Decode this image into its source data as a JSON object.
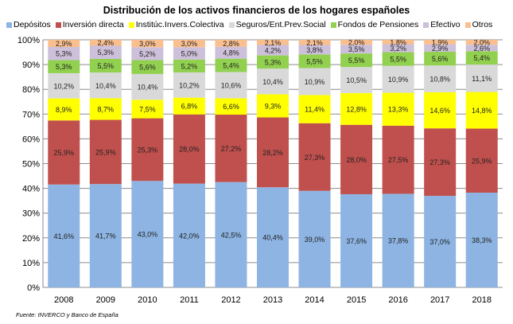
{
  "chart_data": {
    "type": "bar",
    "stacked": true,
    "title": "Distribución de los activos financieros de los hogares españoles",
    "categories": [
      "2008",
      "2009",
      "2010",
      "2011",
      "2012",
      "2013",
      "2014",
      "2015",
      "2016",
      "2017",
      "2018"
    ],
    "ylim": [
      0,
      100
    ],
    "yticks": [
      "0%",
      "10%",
      "20%",
      "30%",
      "40%",
      "50%",
      "60%",
      "70%",
      "80%",
      "90%",
      "100%"
    ],
    "grid": true,
    "legend": "top",
    "series": [
      {
        "name": "Depósitos",
        "color": "#8DB4E2",
        "values": [
          41.6,
          41.7,
          43.0,
          42.0,
          42.5,
          40.4,
          39.0,
          37.6,
          37.8,
          37.0,
          38.3
        ]
      },
      {
        "name": "Inversión directa",
        "color": "#C0504D",
        "values": [
          25.9,
          25.9,
          25.3,
          28.0,
          27.2,
          28.2,
          27.3,
          28.0,
          27.5,
          27.3,
          25.9
        ]
      },
      {
        "name": "Institúc.Invers.Colectiva",
        "color": "#FFFF00",
        "values": [
          8.9,
          8.7,
          7.5,
          6.8,
          6.6,
          9.3,
          11.4,
          12.8,
          13.3,
          14.6,
          14.8
        ]
      },
      {
        "name": "Seguros/Ent.Prev.Social",
        "color": "#D9D9D9",
        "values": [
          10.2,
          10.4,
          10.4,
          10.2,
          10.6,
          10.4,
          10.9,
          10.5,
          10.9,
          10.8,
          11.1
        ]
      },
      {
        "name": "Fondos de Pensiones",
        "color": "#92D050",
        "values": [
          5.3,
          5.5,
          5.6,
          5.2,
          5.4,
          5.3,
          5.5,
          5.5,
          5.5,
          5.6,
          5.4
        ]
      },
      {
        "name": "Efectivo",
        "color": "#CCC0DA",
        "values": [
          5.3,
          5.3,
          5.2,
          5.0,
          4.8,
          4.2,
          3.8,
          3.5,
          3.2,
          2.9,
          2.6
        ]
      },
      {
        "name": "Otros",
        "color": "#FABF8F",
        "values": [
          2.9,
          2.4,
          3.0,
          3.0,
          2.8,
          2.1,
          2.1,
          2.0,
          1.8,
          1.9,
          2.0
        ]
      }
    ],
    "source": "Fuente: INVERCO y Banco de España"
  }
}
